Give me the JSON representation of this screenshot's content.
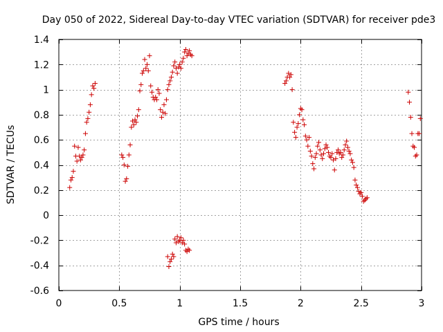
{
  "chart_data": {
    "type": "scatter",
    "title": "Day 050 of 2022, Sidereal Day-to-day VTEC variation (SDTVAR) for receiver pde3",
    "xlabel": "GPS time / hours",
    "ylabel": "SDTVAR / TECUs",
    "xlim": [
      0,
      3
    ],
    "ylim": [
      -0.6,
      1.4
    ],
    "xticks": [
      0,
      0.5,
      1,
      1.5,
      2,
      2.5,
      3
    ],
    "xtick_labels": [
      "0",
      "0.5",
      "1",
      "1.5",
      "2",
      "2.5",
      "3"
    ],
    "yticks": [
      -0.6,
      -0.4,
      -0.2,
      0,
      0.2,
      0.4,
      0.6,
      0.8,
      1,
      1.2,
      1.4
    ],
    "ytick_labels": [
      "-0.6",
      "-0.4",
      "-0.2",
      "0",
      "0.2",
      "0.4",
      "0.6",
      "0.8",
      "1",
      "1.2",
      "1.4"
    ],
    "grid": true,
    "marker": "+",
    "marker_color": "#cc0000",
    "series": [
      {
        "name": "SDTVAR",
        "points": [
          [
            0.09,
            0.22
          ],
          [
            0.1,
            0.28
          ],
          [
            0.11,
            0.3
          ],
          [
            0.12,
            0.35
          ],
          [
            0.13,
            0.55
          ],
          [
            0.14,
            0.47
          ],
          [
            0.15,
            0.43
          ],
          [
            0.16,
            0.54
          ],
          [
            0.17,
            0.47
          ],
          [
            0.18,
            0.44
          ],
          [
            0.19,
            0.46
          ],
          [
            0.2,
            0.48
          ],
          [
            0.21,
            0.52
          ],
          [
            0.22,
            0.65
          ],
          [
            0.23,
            0.74
          ],
          [
            0.24,
            0.77
          ],
          [
            0.25,
            0.82
          ],
          [
            0.26,
            0.88
          ],
          [
            0.27,
            0.96
          ],
          [
            0.28,
            1.03
          ],
          [
            0.29,
            1.01
          ],
          [
            0.3,
            1.05
          ],
          [
            0.52,
            0.48
          ],
          [
            0.53,
            0.46
          ],
          [
            0.54,
            0.4
          ],
          [
            0.55,
            0.27
          ],
          [
            0.56,
            0.29
          ],
          [
            0.57,
            0.39
          ],
          [
            0.58,
            0.48
          ],
          [
            0.59,
            0.56
          ],
          [
            0.6,
            0.7
          ],
          [
            0.61,
            0.75
          ],
          [
            0.62,
            0.72
          ],
          [
            0.63,
            0.76
          ],
          [
            0.64,
            0.74
          ],
          [
            0.65,
            0.79
          ],
          [
            0.66,
            0.84
          ],
          [
            0.67,
            0.99
          ],
          [
            0.68,
            1.04
          ],
          [
            0.69,
            1.13
          ],
          [
            0.7,
            1.15
          ],
          [
            0.71,
            1.24
          ],
          [
            0.72,
            1.17
          ],
          [
            0.73,
            1.2
          ],
          [
            0.74,
            1.15
          ],
          [
            0.75,
            1.27
          ],
          [
            0.76,
            1.03
          ],
          [
            0.77,
            0.98
          ],
          [
            0.78,
            0.94
          ],
          [
            0.79,
            0.92
          ],
          [
            0.8,
            0.94
          ],
          [
            0.81,
            0.92
          ],
          [
            0.82,
            1.0
          ],
          [
            0.83,
            0.97
          ],
          [
            0.84,
            0.84
          ],
          [
            0.85,
            0.78
          ],
          [
            0.86,
            0.82
          ],
          [
            0.87,
            0.88
          ],
          [
            0.88,
            0.81
          ],
          [
            0.89,
            0.92
          ],
          [
            0.9,
            1.0
          ],
          [
            0.91,
            1.04
          ],
          [
            0.92,
            1.07
          ],
          [
            0.93,
            1.1
          ],
          [
            0.94,
            1.14
          ],
          [
            0.95,
            1.19
          ],
          [
            0.96,
            1.22
          ],
          [
            0.97,
            1.17
          ],
          [
            0.98,
            1.13
          ],
          [
            0.99,
            1.18
          ],
          [
            1.0,
            1.2
          ],
          [
            1.01,
            1.17
          ],
          [
            1.02,
            1.22
          ],
          [
            1.03,
            1.25
          ],
          [
            1.04,
            1.3
          ],
          [
            1.05,
            1.32
          ],
          [
            1.06,
            1.27
          ],
          [
            1.07,
            1.29
          ],
          [
            1.08,
            1.31
          ],
          [
            1.09,
            1.28
          ],
          [
            1.1,
            1.27
          ],
          [
            0.9,
            -0.33
          ],
          [
            0.91,
            -0.41
          ],
          [
            0.92,
            -0.37
          ],
          [
            0.93,
            -0.35
          ],
          [
            0.94,
            -0.31
          ],
          [
            0.95,
            -0.33
          ],
          [
            0.96,
            -0.19
          ],
          [
            0.97,
            -0.22
          ],
          [
            0.98,
            -0.17
          ],
          [
            0.99,
            -0.21
          ],
          [
            1.0,
            -0.2
          ],
          [
            1.01,
            -0.18
          ],
          [
            1.02,
            -0.22
          ],
          [
            1.03,
            -0.2
          ],
          [
            1.04,
            -0.23
          ],
          [
            1.05,
            -0.28
          ],
          [
            1.06,
            -0.29
          ],
          [
            1.07,
            -0.27
          ],
          [
            1.08,
            -0.28
          ],
          [
            1.87,
            1.05
          ],
          [
            1.88,
            1.07
          ],
          [
            1.89,
            1.1
          ],
          [
            1.9,
            1.13
          ],
          [
            1.91,
            1.1
          ],
          [
            1.92,
            1.12
          ],
          [
            1.93,
            1.0
          ],
          [
            1.94,
            0.74
          ],
          [
            1.95,
            0.66
          ],
          [
            1.96,
            0.62
          ],
          [
            1.97,
            0.7
          ],
          [
            1.98,
            0.73
          ],
          [
            1.99,
            0.8
          ],
          [
            2.0,
            0.85
          ],
          [
            2.01,
            0.84
          ],
          [
            2.02,
            0.76
          ],
          [
            2.03,
            0.72
          ],
          [
            2.04,
            0.63
          ],
          [
            2.05,
            0.6
          ],
          [
            2.06,
            0.55
          ],
          [
            2.07,
            0.62
          ],
          [
            2.08,
            0.51
          ],
          [
            2.09,
            0.47
          ],
          [
            2.1,
            0.41
          ],
          [
            2.11,
            0.37
          ],
          [
            2.12,
            0.46
          ],
          [
            2.13,
            0.49
          ],
          [
            2.14,
            0.55
          ],
          [
            2.15,
            0.58
          ],
          [
            2.16,
            0.52
          ],
          [
            2.17,
            0.48
          ],
          [
            2.18,
            0.45
          ],
          [
            2.19,
            0.49
          ],
          [
            2.2,
            0.53
          ],
          [
            2.21,
            0.56
          ],
          [
            2.22,
            0.54
          ],
          [
            2.23,
            0.5
          ],
          [
            2.24,
            0.47
          ],
          [
            2.25,
            0.46
          ],
          [
            2.26,
            0.49
          ],
          [
            2.27,
            0.44
          ],
          [
            2.28,
            0.36
          ],
          [
            2.29,
            0.45
          ],
          [
            2.3,
            0.5
          ],
          [
            2.31,
            0.52
          ],
          [
            2.32,
            0.49
          ],
          [
            2.33,
            0.5
          ],
          [
            2.34,
            0.46
          ],
          [
            2.35,
            0.48
          ],
          [
            2.36,
            0.52
          ],
          [
            2.37,
            0.56
          ],
          [
            2.38,
            0.59
          ],
          [
            2.39,
            0.54
          ],
          [
            2.4,
            0.51
          ],
          [
            2.41,
            0.49
          ],
          [
            2.42,
            0.44
          ],
          [
            2.43,
            0.42
          ],
          [
            2.44,
            0.38
          ],
          [
            2.45,
            0.28
          ],
          [
            2.46,
            0.24
          ],
          [
            2.47,
            0.22
          ],
          [
            2.48,
            0.19
          ],
          [
            2.49,
            0.17
          ],
          [
            2.5,
            0.18
          ],
          [
            2.51,
            0.15
          ],
          [
            2.52,
            0.11
          ],
          [
            2.53,
            0.12
          ],
          [
            2.54,
            0.13
          ],
          [
            2.55,
            0.14
          ],
          [
            2.89,
            0.98
          ],
          [
            2.9,
            0.9
          ],
          [
            2.91,
            0.78
          ],
          [
            2.92,
            0.65
          ],
          [
            2.93,
            0.55
          ],
          [
            2.94,
            0.54
          ],
          [
            2.95,
            0.47
          ],
          [
            2.96,
            0.48
          ],
          [
            2.97,
            0.65
          ],
          [
            2.98,
            0.65
          ],
          [
            2.99,
            0.77
          ]
        ]
      }
    ]
  }
}
